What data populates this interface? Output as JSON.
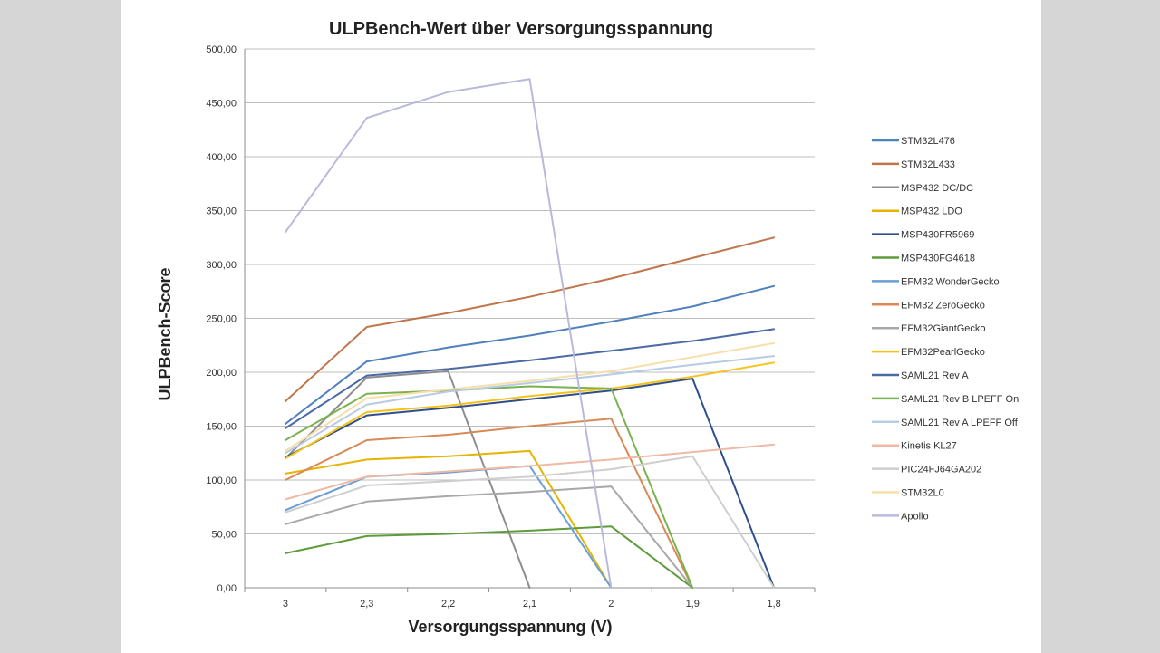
{
  "chart_data": {
    "type": "line",
    "title": "ULPBench-Wert über Versorgungsspannung",
    "xlabel": "Versorgungsspannung (V)",
    "ylabel": "ULPBench-Score",
    "categories": [
      "3",
      "2,3",
      "2,2",
      "2,1",
      "2",
      "1,9",
      "1,8"
    ],
    "ylim": [
      0,
      500
    ],
    "yticks": [
      "0,00",
      "50,00",
      "100,00",
      "150,00",
      "200,00",
      "250,00",
      "300,00",
      "350,00",
      "400,00",
      "450,00",
      "500,00"
    ],
    "grid": true,
    "legend_position": "right",
    "series": [
      {
        "name": "STM32L476",
        "color": "#4f81bd",
        "values": [
          152,
          210,
          223,
          234,
          247,
          261,
          280
        ]
      },
      {
        "name": "STM32L433",
        "color": "#c0764b",
        "values": [
          173,
          242,
          255,
          270,
          287,
          306,
          325
        ]
      },
      {
        "name": "MSP432 DC/DC",
        "color": "#8d8d8d",
        "values": [
          120,
          195,
          201,
          0,
          null,
          null,
          null
        ]
      },
      {
        "name": "MSP432 LDO",
        "color": "#e6b400",
        "values": [
          106,
          119,
          122,
          127,
          0,
          null,
          null
        ]
      },
      {
        "name": "MSP430FR5969",
        "color": "#2f4f8a",
        "values": [
          121,
          160,
          167,
          175,
          183,
          194,
          0
        ]
      },
      {
        "name": "MSP430FG4618",
        "color": "#5e9b3a",
        "values": [
          32,
          48,
          50,
          53,
          57,
          0,
          null
        ]
      },
      {
        "name": "EFM32 WonderGecko",
        "color": "#6a9fd6",
        "values": [
          72,
          103,
          107,
          113,
          0,
          null,
          null
        ]
      },
      {
        "name": "EFM32 ZeroGecko",
        "color": "#d98955",
        "values": [
          100,
          137,
          142,
          150,
          157,
          0,
          null
        ]
      },
      {
        "name": "EFM32GiantGecko",
        "color": "#a8a8a8",
        "values": [
          59,
          80,
          85,
          89,
          94,
          0,
          null
        ]
      },
      {
        "name": "EFM32PearlGecko",
        "color": "#f5c318",
        "values": [
          120,
          163,
          169,
          178,
          185,
          196,
          209
        ]
      },
      {
        "name": "SAML21 Rev A",
        "color": "#4a6aa5",
        "values": [
          148,
          197,
          203,
          211,
          220,
          229,
          240
        ]
      },
      {
        "name": "SAML21 Rev B LPEFF On",
        "color": "#7ab24f",
        "values": [
          137,
          180,
          183,
          187,
          185,
          0,
          null
        ]
      },
      {
        "name": "SAML21 Rev A LPEFF Off",
        "color": "#b8cbe4",
        "values": [
          125,
          170,
          182,
          190,
          198,
          207,
          215
        ]
      },
      {
        "name": "Kinetis KL27",
        "color": "#f0b9a4",
        "values": [
          82,
          103,
          108,
          113,
          119,
          126,
          133
        ]
      },
      {
        "name": "PIC24FJ64GA202",
        "color": "#cfcfcf",
        "values": [
          70,
          95,
          99,
          103,
          110,
          122,
          0
        ]
      },
      {
        "name": "STM32L0",
        "color": "#f7dfa9",
        "values": [
          127,
          176,
          184,
          192,
          201,
          214,
          227
        ]
      },
      {
        "name": "Apollo",
        "color": "#b9b9dd",
        "values": [
          330,
          436,
          460,
          472,
          0,
          null,
          null
        ]
      }
    ]
  }
}
